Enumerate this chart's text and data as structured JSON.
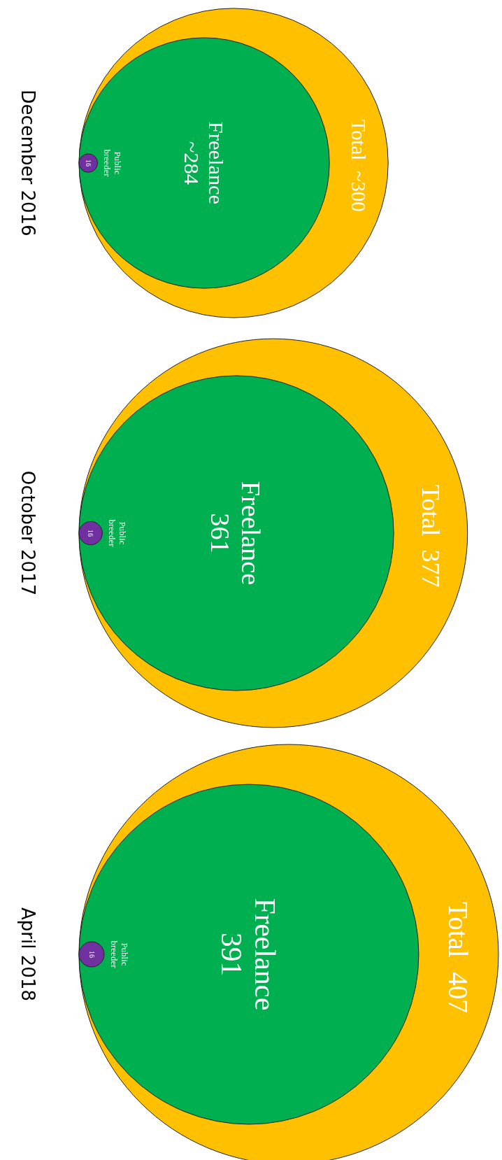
{
  "chart_data": [
    {
      "type": "other",
      "title": "December 2016",
      "categories": [
        "Total",
        "Freelance",
        "Public breeder"
      ],
      "values": [
        300,
        284,
        16
      ],
      "value_labels": [
        "~300",
        "~284",
        "16"
      ],
      "colors": [
        "#ffc000",
        "#00b050",
        "#7030a0"
      ]
    },
    {
      "type": "other",
      "title": "October 2017",
      "categories": [
        "Total",
        "Freelance",
        "Public breeder"
      ],
      "values": [
        377,
        361,
        16
      ],
      "value_labels": [
        "377",
        "361",
        "16"
      ],
      "colors": [
        "#ffc000",
        "#00b050",
        "#7030a0"
      ]
    },
    {
      "type": "other",
      "title": "April 2018",
      "categories": [
        "Total",
        "Freelance",
        "Public breeder"
      ],
      "values": [
        407,
        391,
        16
      ],
      "value_labels": [
        "407",
        "391",
        "16"
      ],
      "colors": [
        "#ffc000",
        "#00b050",
        "#7030a0"
      ]
    }
  ]
}
